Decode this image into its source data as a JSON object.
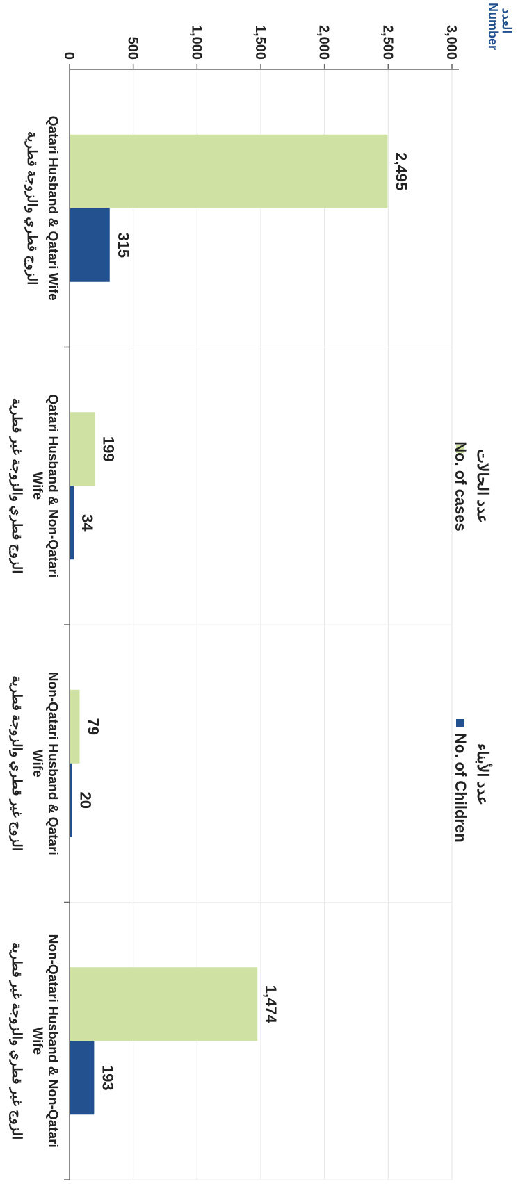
{
  "chart_data": {
    "type": "bar",
    "ylabel": "Number",
    "ylabel_ar": "العدد",
    "categories": [
      {
        "en": "Qatari Husband & Qatari Wife",
        "ar": "الزوج قطري والزوجة قطرية"
      },
      {
        "en": "Qatari Husband & Non-Qatari Wife",
        "ar": "الزوج قطري والزوجة غير قطرية"
      },
      {
        "en": "Non-Qatari Husband & Qatari Wife",
        "ar": "الزوج غير قطري والزوجة قطرية"
      },
      {
        "en": "Non-Qatari Husband & Non-Qatari Wife",
        "ar": "الزوج غير قطري والزوجة غير قطرية"
      }
    ],
    "series": [
      {
        "name": "No. of cases",
        "name_ar": "عدد الحالات",
        "color": "#cfe2a3",
        "values": [
          2495,
          199,
          79,
          1474
        ]
      },
      {
        "name": "No. of Children",
        "name_ar": "عدد الأبناء",
        "color": "#23508f",
        "values": [
          315,
          34,
          20,
          193
        ]
      }
    ],
    "value_labels": [
      [
        "2,495",
        "199",
        "79",
        "1,474"
      ],
      [
        "315",
        "34",
        "20",
        "193"
      ]
    ],
    "ylim": [
      0,
      3000
    ],
    "yticks": [
      0,
      500,
      1000,
      1500,
      2000,
      2500,
      3000
    ],
    "ytick_labels": [
      "0",
      "500",
      "1,000",
      "1,500",
      "2,000",
      "2,500",
      "3,000"
    ],
    "grid": true,
    "legend": "top",
    "orientation": "rotated 90° clockwise"
  }
}
